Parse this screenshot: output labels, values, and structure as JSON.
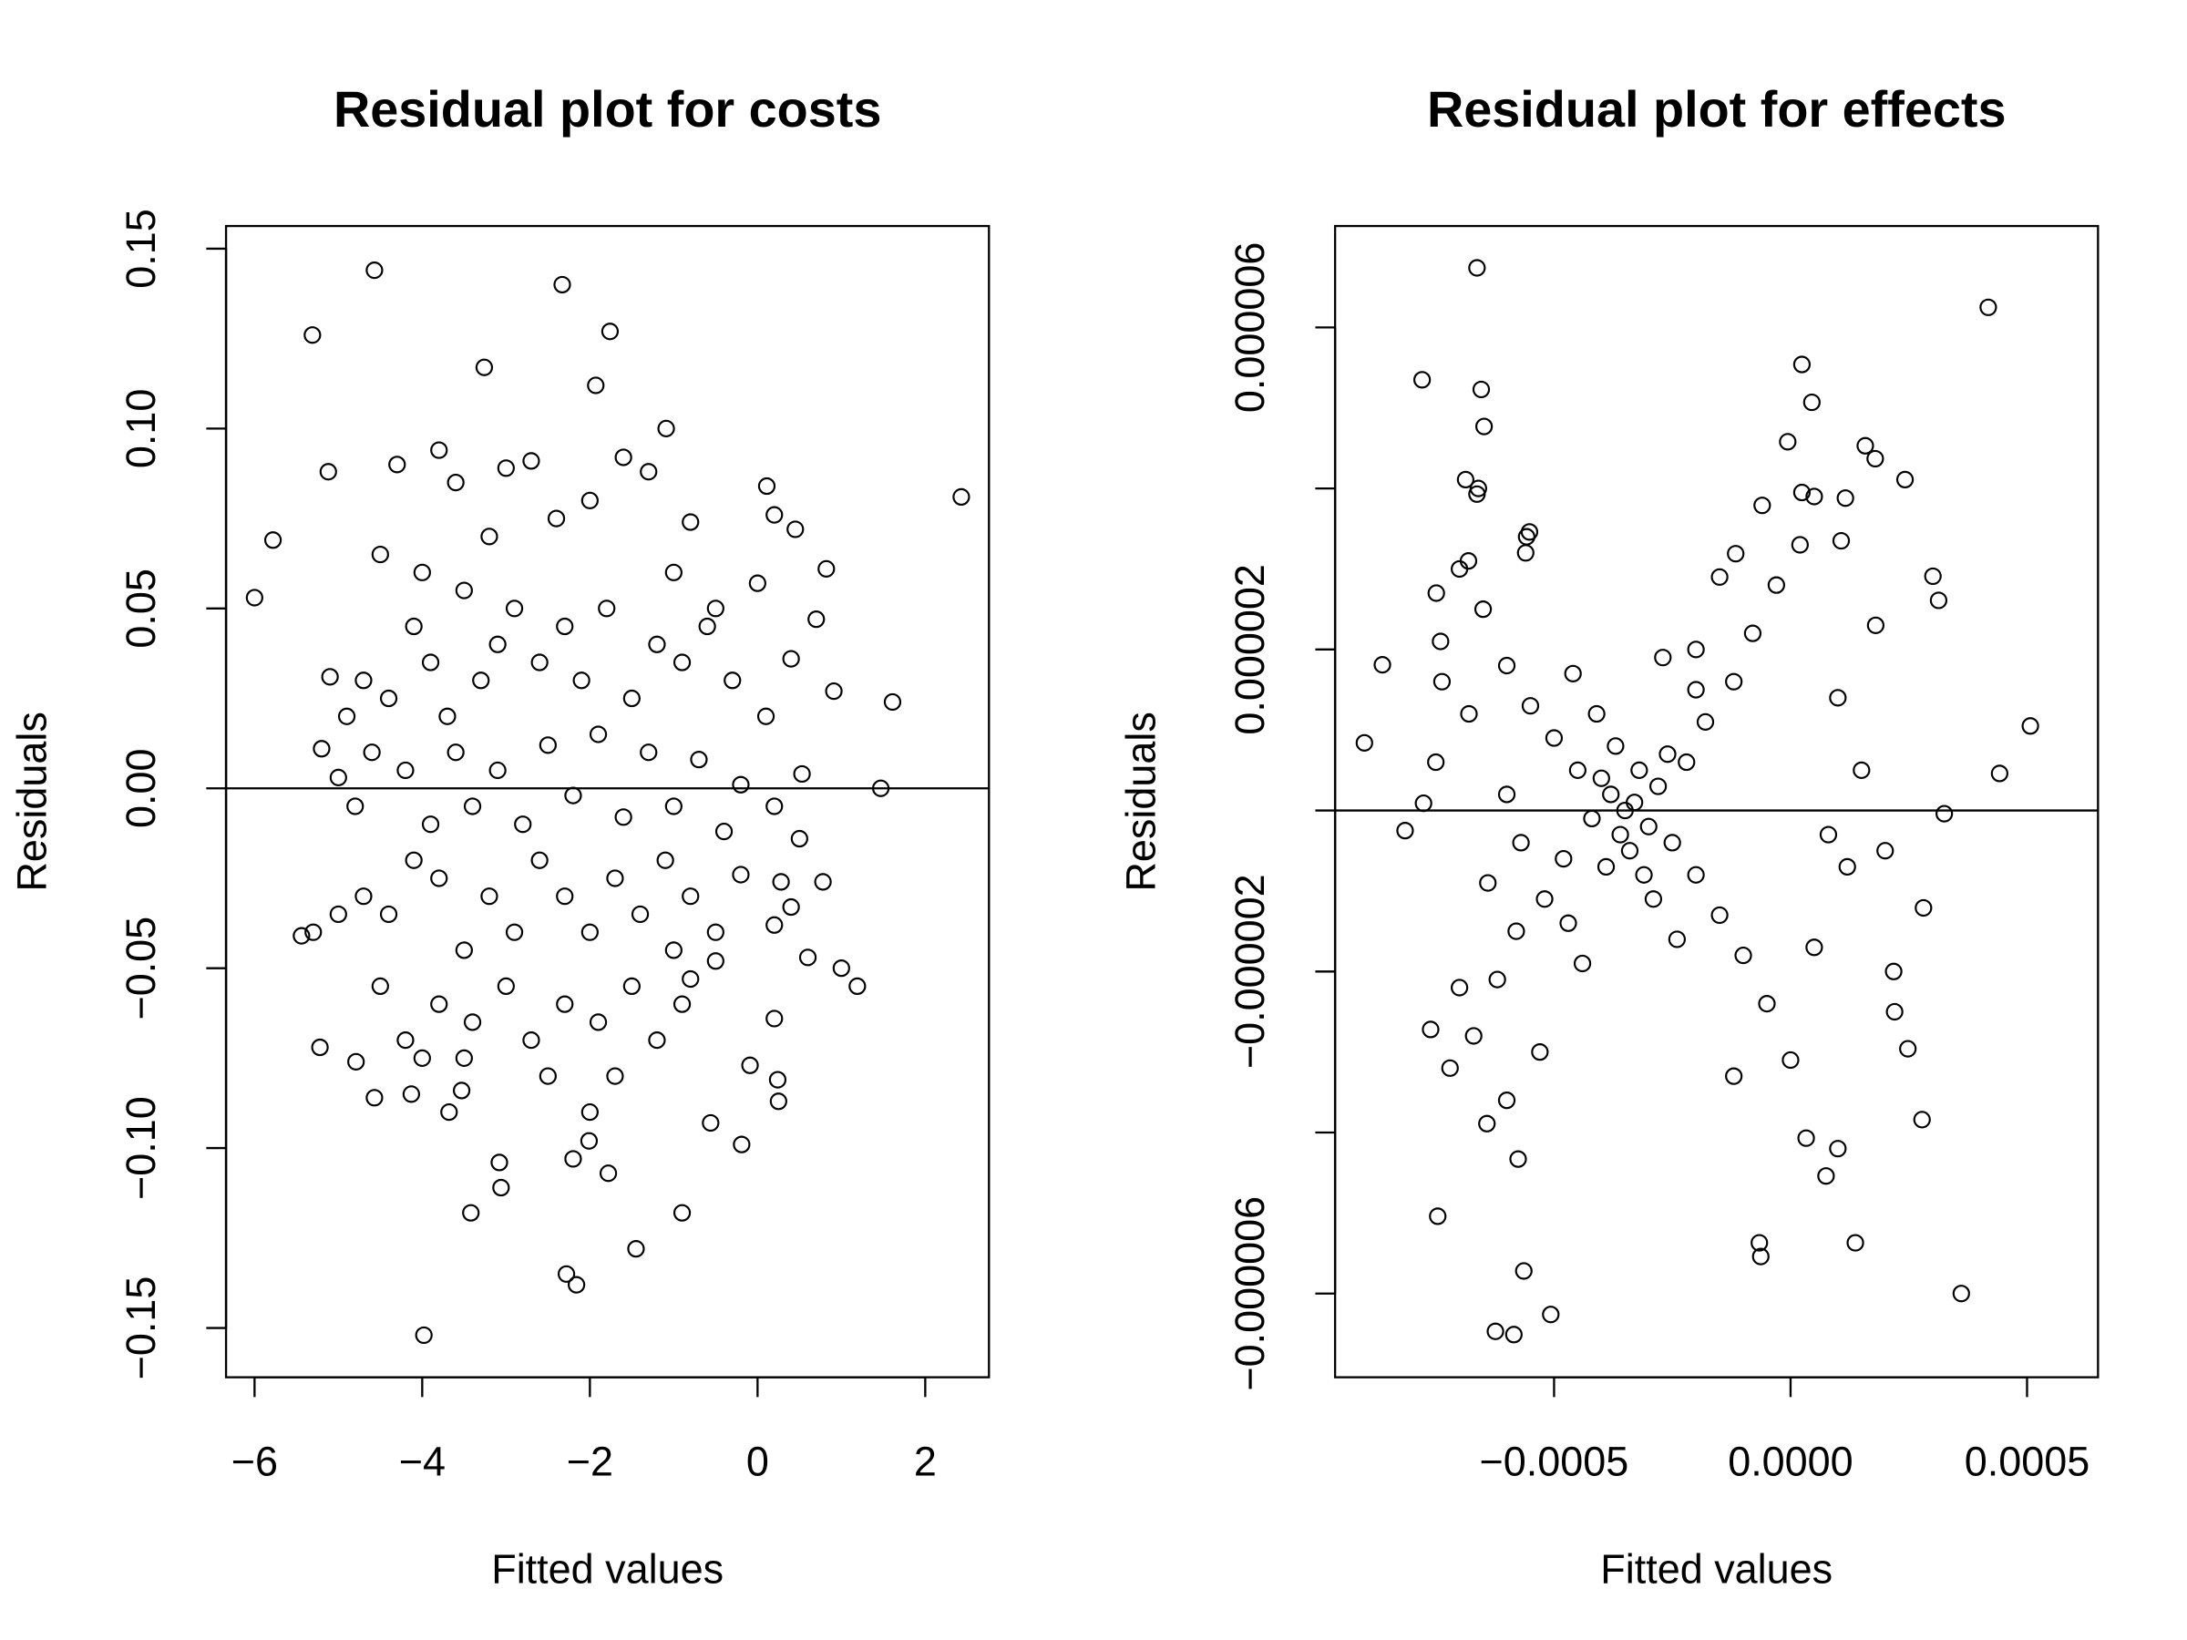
{
  "chart_data": [
    {
      "type": "scatter",
      "title": "Residual plot for costs",
      "x_label": "Fitted values",
      "y_label": "Residuals",
      "xlim": [
        -6.34,
        2.76
      ],
      "ylim": [
        -0.1637,
        0.1563
      ],
      "xticks": [
        {
          "value": -6,
          "label": "−6"
        },
        {
          "value": -4,
          "label": "−4"
        },
        {
          "value": -2,
          "label": "−2"
        },
        0,
        2
      ],
      "yticks": [
        {
          "value": -0.15,
          "label": "−0.15"
        },
        {
          "value": -0.1,
          "label": "−0.10"
        },
        {
          "value": -0.05,
          "label": "−0.05"
        },
        {
          "value": 0,
          "label": "0.00"
        },
        {
          "value": 0.05,
          "label": "0.05"
        },
        {
          "value": 0.1,
          "label": "0.10"
        },
        {
          "value": 0.15,
          "label": "0.15"
        }
      ],
      "hline": 0,
      "color": "#000000",
      "x": [
        -6.0,
        -5.78,
        -5.31,
        -4.57,
        -2.33,
        -1.76,
        -3.26,
        -1.93,
        2.43,
        1.61,
        1.47,
        1.19,
        1.0,
        -3.98,
        -2.28,
        -2.16,
        -1.45,
        -3.42,
        -0.9,
        -5.44,
        -5.22,
        -5.12,
        -1.09,
        0.11,
        0.82,
        0.91,
        0.53,
        0.28,
        0.78,
        0.2,
        0.24,
        0.25,
        -0.09,
        -0.19,
        -0.56,
        -3.08,
        -3.06,
        -2.2,
        -2.01,
        -1.78,
        -3.68,
        -3.53,
        -4.57,
        -4.13,
        -4.79,
        -4.5,
        -4.3,
        -4.0,
        -3.8,
        -3.6,
        -3.2,
        -3.0,
        -2.7,
        -2.4,
        -2.0,
        -1.6,
        -1.3,
        -1.0,
        -0.8,
        -0.5,
        0.0,
        0.2,
        0.45,
        0.4,
        0.7,
        0.1,
        -0.3,
        -0.6,
        -0.9,
        -1.2,
        -1.5,
        -1.8,
        -2.1,
        -2.3,
        -2.6,
        -2.9,
        -3.1,
        -3.3,
        -3.5,
        -3.7,
        -3.9,
        -4.1,
        -4.4,
        -4.7,
        -4.9,
        -5.1,
        -5.2,
        -5.0,
        -4.8,
        -4.6,
        -4.2,
        -3.9,
        -3.6,
        -3.4,
        -3.1,
        -2.8,
        -2.5,
        -2.2,
        -1.9,
        -1.6,
        -1.3,
        -1.0,
        -0.7,
        -0.4,
        -0.2,
        0.2,
        0.5,
        0.4,
        0.2,
        -0.2,
        -0.5,
        -0.8,
        -1.1,
        -1.4,
        -1.7,
        -2.0,
        -2.3,
        -2.6,
        -2.9,
        -3.2,
        -3.5,
        -3.8,
        -4.1,
        -4.4,
        -4.7,
        -5.0,
        -5.3,
        -4.5,
        -4.2,
        -3.8,
        -3.4,
        -3.0,
        -2.7,
        -2.3,
        -1.9,
        -1.5,
        -1.2,
        -0.9,
        -0.5,
        0.6,
        -1.0,
        -2.5,
        -2.0,
        -1.7,
        -3.5,
        -4.0,
        -0.8
      ],
      "values": [
        0.053,
        0.069,
        0.126,
        0.144,
        0.14,
        0.127,
        0.117,
        0.112,
        0.081,
        0.024,
        0.0,
        -0.055,
        -0.05,
        -0.152,
        -0.135,
        -0.138,
        -0.128,
        -0.118,
        -0.118,
        -0.041,
        -0.072,
        0.088,
        0.1,
        0.084,
        0.061,
        0.027,
        0.004,
        -0.026,
        -0.026,
        -0.064,
        -0.081,
        -0.087,
        -0.077,
        -0.099,
        -0.093,
        -0.104,
        -0.111,
        -0.103,
        -0.098,
        -0.107,
        -0.09,
        -0.084,
        -0.086,
        -0.085,
        -0.076,
        0.065,
        0.09,
        0.06,
        0.094,
        0.085,
        0.07,
        0.089,
        0.091,
        0.075,
        0.08,
        0.092,
        0.088,
        0.06,
        0.074,
        0.05,
        0.057,
        0.076,
        0.072,
        0.036,
        0.047,
        0.02,
        0.03,
        0.045,
        0.035,
        0.04,
        0.025,
        0.05,
        0.03,
        0.045,
        0.035,
        0.05,
        0.04,
        0.03,
        0.055,
        0.02,
        0.035,
        0.045,
        0.025,
        0.03,
        0.02,
        0.031,
        0.011,
        0.003,
        -0.005,
        0.01,
        0.005,
        -0.01,
        0.01,
        -0.005,
        0.005,
        -0.01,
        0.012,
        -0.002,
        0.015,
        -0.008,
        0.01,
        -0.005,
        0.008,
        -0.012,
        0.001,
        -0.005,
        -0.014,
        -0.033,
        -0.038,
        -0.024,
        -0.04,
        -0.03,
        -0.02,
        -0.035,
        -0.025,
        -0.04,
        -0.03,
        -0.02,
        -0.04,
        -0.03,
        -0.045,
        -0.025,
        -0.02,
        -0.035,
        -0.03,
        -0.035,
        -0.04,
        -0.055,
        -0.07,
        -0.06,
        -0.065,
        -0.055,
        -0.07,
        -0.06,
        -0.065,
        -0.055,
        -0.07,
        -0.06,
        -0.048,
        -0.047,
        -0.045,
        -0.08,
        -0.09,
        -0.08,
        -0.075,
        -0.075,
        -0.053
      ]
    },
    {
      "type": "scatter",
      "title": "Residual plot for effects",
      "x_label": "Fitted values",
      "y_label": "Residuals",
      "xlim": [
        -0.000963,
        0.00065
      ],
      "ylim": [
        -7.04e-06,
        7.26e-06
      ],
      "xticks": [
        {
          "value": -0.0005,
          "label": "−0.0005"
        },
        {
          "value": 0,
          "label": "0.0000"
        },
        0.0005
      ],
      "yticks": [
        {
          "value": -6e-06,
          "label": "−0.000006"
        },
        {
          "value": -4e-06,
          "label": null
        },
        {
          "value": -2e-06,
          "label": "−0.000002"
        },
        {
          "value": 0,
          "label": null
        },
        2e-06,
        {
          "value": 4e-06,
          "label": null
        },
        6e-06
      ],
      "hline": 0,
      "color": "#000000",
      "x": [
        -0.000663,
        0.000418,
        -0.000779,
        -0.000654,
        -0.000648,
        2.4e-05,
        4.5e-05,
        -6e-06,
        0.000158,
        0.000179,
        0.000242,
        -0.000687,
        -0.000663,
        2.4e-05,
        0.000116,
        -0.000552,
        -6e-05,
        0.000301,
        0.000313,
        -0.000863,
        -0.000901,
        0.000507,
        0.000442,
        0.000325,
        0.000281,
        0.000248,
        0.000218,
        0.000278,
        0.000361,
        0.000137,
        7.5e-05,
        3.3e-05,
        -6.6e-05,
        -6.3e-05,
        -0.000507,
        -0.000585,
        -0.000624,
        -0.000564,
        -0.000576,
        -0.000746,
        -0.000642,
        -0.000761,
        -0.000815,
        -0.000776,
        -0.000737,
        -0.000749,
        -0.000681,
        -0.000558,
        -0.0002,
        -0.000116,
        0.000107,
        -0.00035,
        -0.00033,
        -0.0003,
        -0.00038,
        -0.00036,
        -0.00028,
        -0.00042,
        -0.0004,
        -0.00025,
        -0.00045,
        -0.00022,
        -0.00048,
        -0.00032,
        -0.00034,
        -0.0002,
        -0.0005,
        -0.00018,
        -0.00052,
        -0.00015,
        -0.00055,
        -0.00012,
        -0.00058,
        -0.0001,
        -0.0006,
        -8e-05,
        -0.00062,
        -5e-05,
        -0.00065,
        -3e-05,
        -0.00067,
        0.0,
        -0.0007,
        2e-05,
        -0.00072,
        5e-05,
        -0.00068,
        0.0001,
        -0.00064,
        0.00012,
        -0.00075,
        0.00015,
        -0.0006,
        8e-05,
        -0.00057,
        0.0002,
        -0.00046,
        -0.00024,
        -0.00044,
        -0.00027,
        -0.00041,
        -0.00029,
        -0.00047,
        -0.0002,
        0.00018,
        -0.0007,
        0.00022,
        -0.00074,
        5e-05,
        -0.0006,
        -0.00015,
        -0.00053,
        -0.00012,
        -0.00056,
        0.0001,
        -0.00066,
        -0.00037,
        -0.00031,
        -0.00039,
        -0.00026
      ],
      "values": [
        6.74e-06,
        6.25e-06,
        5.35e-06,
        5.23e-06,
        4.77e-06,
        5.54e-06,
        5.07e-06,
        4.58e-06,
        4.53e-06,
        4.37e-06,
        4.11e-06,
        4.11e-06,
        3.93e-06,
        3.95e-06,
        3.88e-06,
        3.46e-06,
        3.79e-06,
        2.91e-06,
        2.61e-06,
        1.81e-06,
        8.4e-07,
        1.05e-06,
        4.6e-07,
        -4e-08,
        -1.21e-06,
        -2.96e-06,
        -2e-06,
        -3.84e-06,
        -6e-06,
        -5.37e-06,
        -4.54e-06,
        -4.07e-06,
        -5.37e-06,
        -5.54e-06,
        -6.26e-06,
        -6.51e-06,
        -6.47e-06,
        -5.72e-06,
        -4.33e-06,
        -5.04e-06,
        -3.89e-06,
        -2.72e-06,
        -2.5e-07,
        9e-08,
        1.6e-06,
        2.7e-06,
        3.1e-06,
        3.4e-06,
        2e-06,
        3.19e-06,
        3.35e-06,
        0,
        1e-07,
        -2e-07,
        2e-07,
        -3e-07,
        3e-07,
        -1e-07,
        4e-07,
        -4e-07,
        5e-07,
        6e-07,
        -6e-07,
        5e-07,
        -5e-07,
        -8e-07,
        9e-07,
        1.1e-06,
        -1.1e-06,
        -1.3e-06,
        1.3e-06,
        1.6e-06,
        -1.5e-06,
        -1.8e-06,
        1.8e-06,
        2.2e-06,
        -2.1e-06,
        -2.4e-06,
        2.5e-06,
        2.8e-06,
        -2.8e-06,
        -3.1e-06,
        3e-06,
        3.3e-06,
        -3.2e-06,
        -1.7e-06,
        1.2e-06,
        1.4e-06,
        -9e-07,
        -7e-07,
        6e-07,
        5e-07,
        2e-07,
        -3e-07,
        -4e-07,
        -5e-07,
        1.7e-06,
        -1.6e-06,
        -1.9e-06,
        1.9e-06,
        1.2e-06,
        -1.1e-06,
        -1.4e-06,
        1.5e-06,
        2.3e-06,
        -2.2e-06,
        -2.5e-06,
        2.1e-06,
        3.9e-06,
        -3.6e-06,
        2.9e-06,
        -3e-06,
        -3.3e-06,
        3.2e-06,
        -4.2e-06,
        4e-06,
        8e-07,
        -8e-07,
        -7e-07,
        7e-07
      ]
    }
  ]
}
